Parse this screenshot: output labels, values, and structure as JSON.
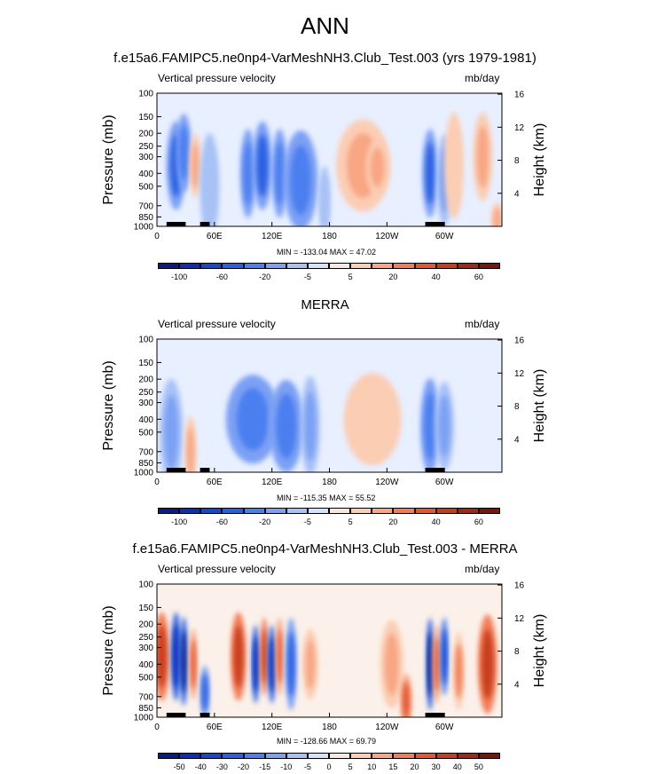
{
  "figure_title": "ANN",
  "chart_data": [
    {
      "type": "heatmap",
      "title": "f.e15a6.FAMIPC5.ne0np4-VarMeshNH3.Club_Test.003 (yrs 1979-1981)",
      "left_string": "Vertical pressure velocity",
      "right_string": "mb/day",
      "ylabel": "Pressure (mb)",
      "ylabel_right": "Height (km)",
      "x_ticks": [
        "0",
        "60E",
        "120E",
        "180",
        "120W",
        "60W"
      ],
      "y_ticks": [
        "100",
        "150",
        "200",
        "250",
        "300",
        "400",
        "500",
        "700",
        "850",
        "1000"
      ],
      "y2_ticks": [
        "16",
        "12",
        "8",
        "4"
      ],
      "min_max": "MIN = -133.04  MAX =  47.02",
      "colorbar_labels": [
        "-100",
        "-60",
        "-20",
        "-5",
        "5",
        "20",
        "40",
        "60"
      ],
      "features": [
        {
          "lon": 20,
          "p": 350,
          "value": -60,
          "w": 10,
          "h": 250
        },
        {
          "lon": 28,
          "p": 280,
          "value": -40,
          "w": 8,
          "h": 220
        },
        {
          "lon": 40,
          "p": 350,
          "value": 25,
          "w": 6,
          "h": 180
        },
        {
          "lon": 55,
          "p": 500,
          "value": -10,
          "w": 10,
          "h": 300
        },
        {
          "lon": 95,
          "p": 400,
          "value": -50,
          "w": 8,
          "h": 250
        },
        {
          "lon": 110,
          "p": 350,
          "value": -60,
          "w": 10,
          "h": 250
        },
        {
          "lon": 128,
          "p": 400,
          "value": -40,
          "w": 8,
          "h": 250
        },
        {
          "lon": 150,
          "p": 450,
          "value": -50,
          "w": 18,
          "h": 280
        },
        {
          "lon": 175,
          "p": 650,
          "value": -10,
          "w": 6,
          "h": 200
        },
        {
          "lon": 215,
          "p": 350,
          "value": 20,
          "w": 28,
          "h": 260
        },
        {
          "lon": 230,
          "p": 360,
          "value": 35,
          "w": 12,
          "h": 160
        },
        {
          "lon": 285,
          "p": 400,
          "value": -60,
          "w": 8,
          "h": 250
        },
        {
          "lon": 300,
          "p": 450,
          "value": -20,
          "w": 8,
          "h": 260
        },
        {
          "lon": 310,
          "p": 350,
          "value": 10,
          "w": 10,
          "h": 300
        },
        {
          "lon": 340,
          "p": 300,
          "value": 25,
          "w": 10,
          "h": 250
        },
        {
          "lon": 355,
          "p": 900,
          "value": 20,
          "w": 6,
          "h": 100
        }
      ]
    },
    {
      "type": "heatmap",
      "title": "MERRA",
      "left_string": "Vertical pressure velocity",
      "right_string": "mb/day",
      "ylabel": "Pressure (mb)",
      "ylabel_right": "Height (km)",
      "x_ticks": [
        "0",
        "60E",
        "120E",
        "180",
        "120W",
        "60W"
      ],
      "y_ticks": [
        "100",
        "150",
        "200",
        "250",
        "300",
        "400",
        "500",
        "700",
        "850",
        "1000"
      ],
      "y2_ticks": [
        "16",
        "12",
        "8",
        "4"
      ],
      "min_max": "MIN = -115.35  MAX =  55.52",
      "colorbar_labels": [
        "-100",
        "-60",
        "-20",
        "-5",
        "5",
        "20",
        "40",
        "60"
      ],
      "features": [
        {
          "lon": 15,
          "p": 500,
          "value": -20,
          "w": 12,
          "h": 300
        },
        {
          "lon": 35,
          "p": 700,
          "value": 25,
          "w": 6,
          "h": 200
        },
        {
          "lon": 100,
          "p": 400,
          "value": -40,
          "w": 28,
          "h": 250
        },
        {
          "lon": 135,
          "p": 450,
          "value": -40,
          "w": 18,
          "h": 260
        },
        {
          "lon": 160,
          "p": 450,
          "value": -20,
          "w": 10,
          "h": 280
        },
        {
          "lon": 225,
          "p": 400,
          "value": 15,
          "w": 30,
          "h": 260
        },
        {
          "lon": 285,
          "p": 450,
          "value": -50,
          "w": 10,
          "h": 270
        },
        {
          "lon": 300,
          "p": 450,
          "value": -20,
          "w": 10,
          "h": 250
        }
      ]
    },
    {
      "type": "heatmap",
      "title": "f.e15a6.FAMIPC5.ne0np4-VarMeshNH3.Club_Test.003 - MERRA",
      "left_string": "Vertical pressure velocity",
      "right_string": "mb/day",
      "ylabel": "Pressure (mb)",
      "ylabel_right": "Height (km)",
      "x_ticks": [
        "0",
        "60E",
        "120E",
        "180",
        "120W",
        "60W"
      ],
      "y_ticks": [
        "100",
        "150",
        "200",
        "250",
        "300",
        "400",
        "500",
        "700",
        "850",
        "1000"
      ],
      "y2_ticks": [
        "16",
        "12",
        "8",
        "4"
      ],
      "min_max": "MIN = -128.66  MAX =  69.79",
      "colorbar_labels": [
        "-50",
        "-40",
        "-30",
        "-20",
        "-15",
        "-10",
        "-5",
        "0",
        "5",
        "10",
        "15",
        "20",
        "30",
        "40",
        "50"
      ],
      "features": [
        {
          "lon": 5,
          "p": 350,
          "value": 30,
          "w": 8,
          "h": 250
        },
        {
          "lon": 20,
          "p": 350,
          "value": -40,
          "w": 5,
          "h": 250
        },
        {
          "lon": 28,
          "p": 380,
          "value": -50,
          "w": 4,
          "h": 250
        },
        {
          "lon": 38,
          "p": 400,
          "value": 20,
          "w": 4,
          "h": 200
        },
        {
          "lon": 50,
          "p": 650,
          "value": -20,
          "w": 5,
          "h": 150
        },
        {
          "lon": 85,
          "p": 350,
          "value": 30,
          "w": 8,
          "h": 250
        },
        {
          "lon": 103,
          "p": 400,
          "value": -40,
          "w": 4,
          "h": 220
        },
        {
          "lon": 112,
          "p": 350,
          "value": 30,
          "w": 4,
          "h": 220
        },
        {
          "lon": 120,
          "p": 400,
          "value": -40,
          "w": 4,
          "h": 220
        },
        {
          "lon": 128,
          "p": 350,
          "value": 20,
          "w": 4,
          "h": 220
        },
        {
          "lon": 140,
          "p": 400,
          "value": -20,
          "w": 6,
          "h": 260
        },
        {
          "lon": 160,
          "p": 400,
          "value": 10,
          "w": 8,
          "h": 200
        },
        {
          "lon": 245,
          "p": 400,
          "value": 10,
          "w": 12,
          "h": 250
        },
        {
          "lon": 260,
          "p": 750,
          "value": 20,
          "w": 6,
          "h": 150
        },
        {
          "lon": 285,
          "p": 400,
          "value": -50,
          "w": 4,
          "h": 260
        },
        {
          "lon": 292,
          "p": 400,
          "value": 20,
          "w": 4,
          "h": 220
        },
        {
          "lon": 300,
          "p": 350,
          "value": -30,
          "w": 4,
          "h": 220
        },
        {
          "lon": 315,
          "p": 450,
          "value": 15,
          "w": 6,
          "h": 220
        },
        {
          "lon": 345,
          "p": 400,
          "value": 30,
          "w": 10,
          "h": 280
        }
      ]
    }
  ],
  "colors": {
    "blues": [
      "#081d84",
      "#0d2fb7",
      "#1746cf",
      "#2960e2",
      "#4b7ff0",
      "#7ca0f4",
      "#a8c2f6",
      "#d3e3fa"
    ],
    "reds": [
      "#fde7dc",
      "#fbcdb3",
      "#f8a683",
      "#f37d56",
      "#e65532",
      "#c73c1d",
      "#a12814",
      "#7a150d"
    ],
    "zero": "#f7f3ef",
    "land": "#000000"
  }
}
